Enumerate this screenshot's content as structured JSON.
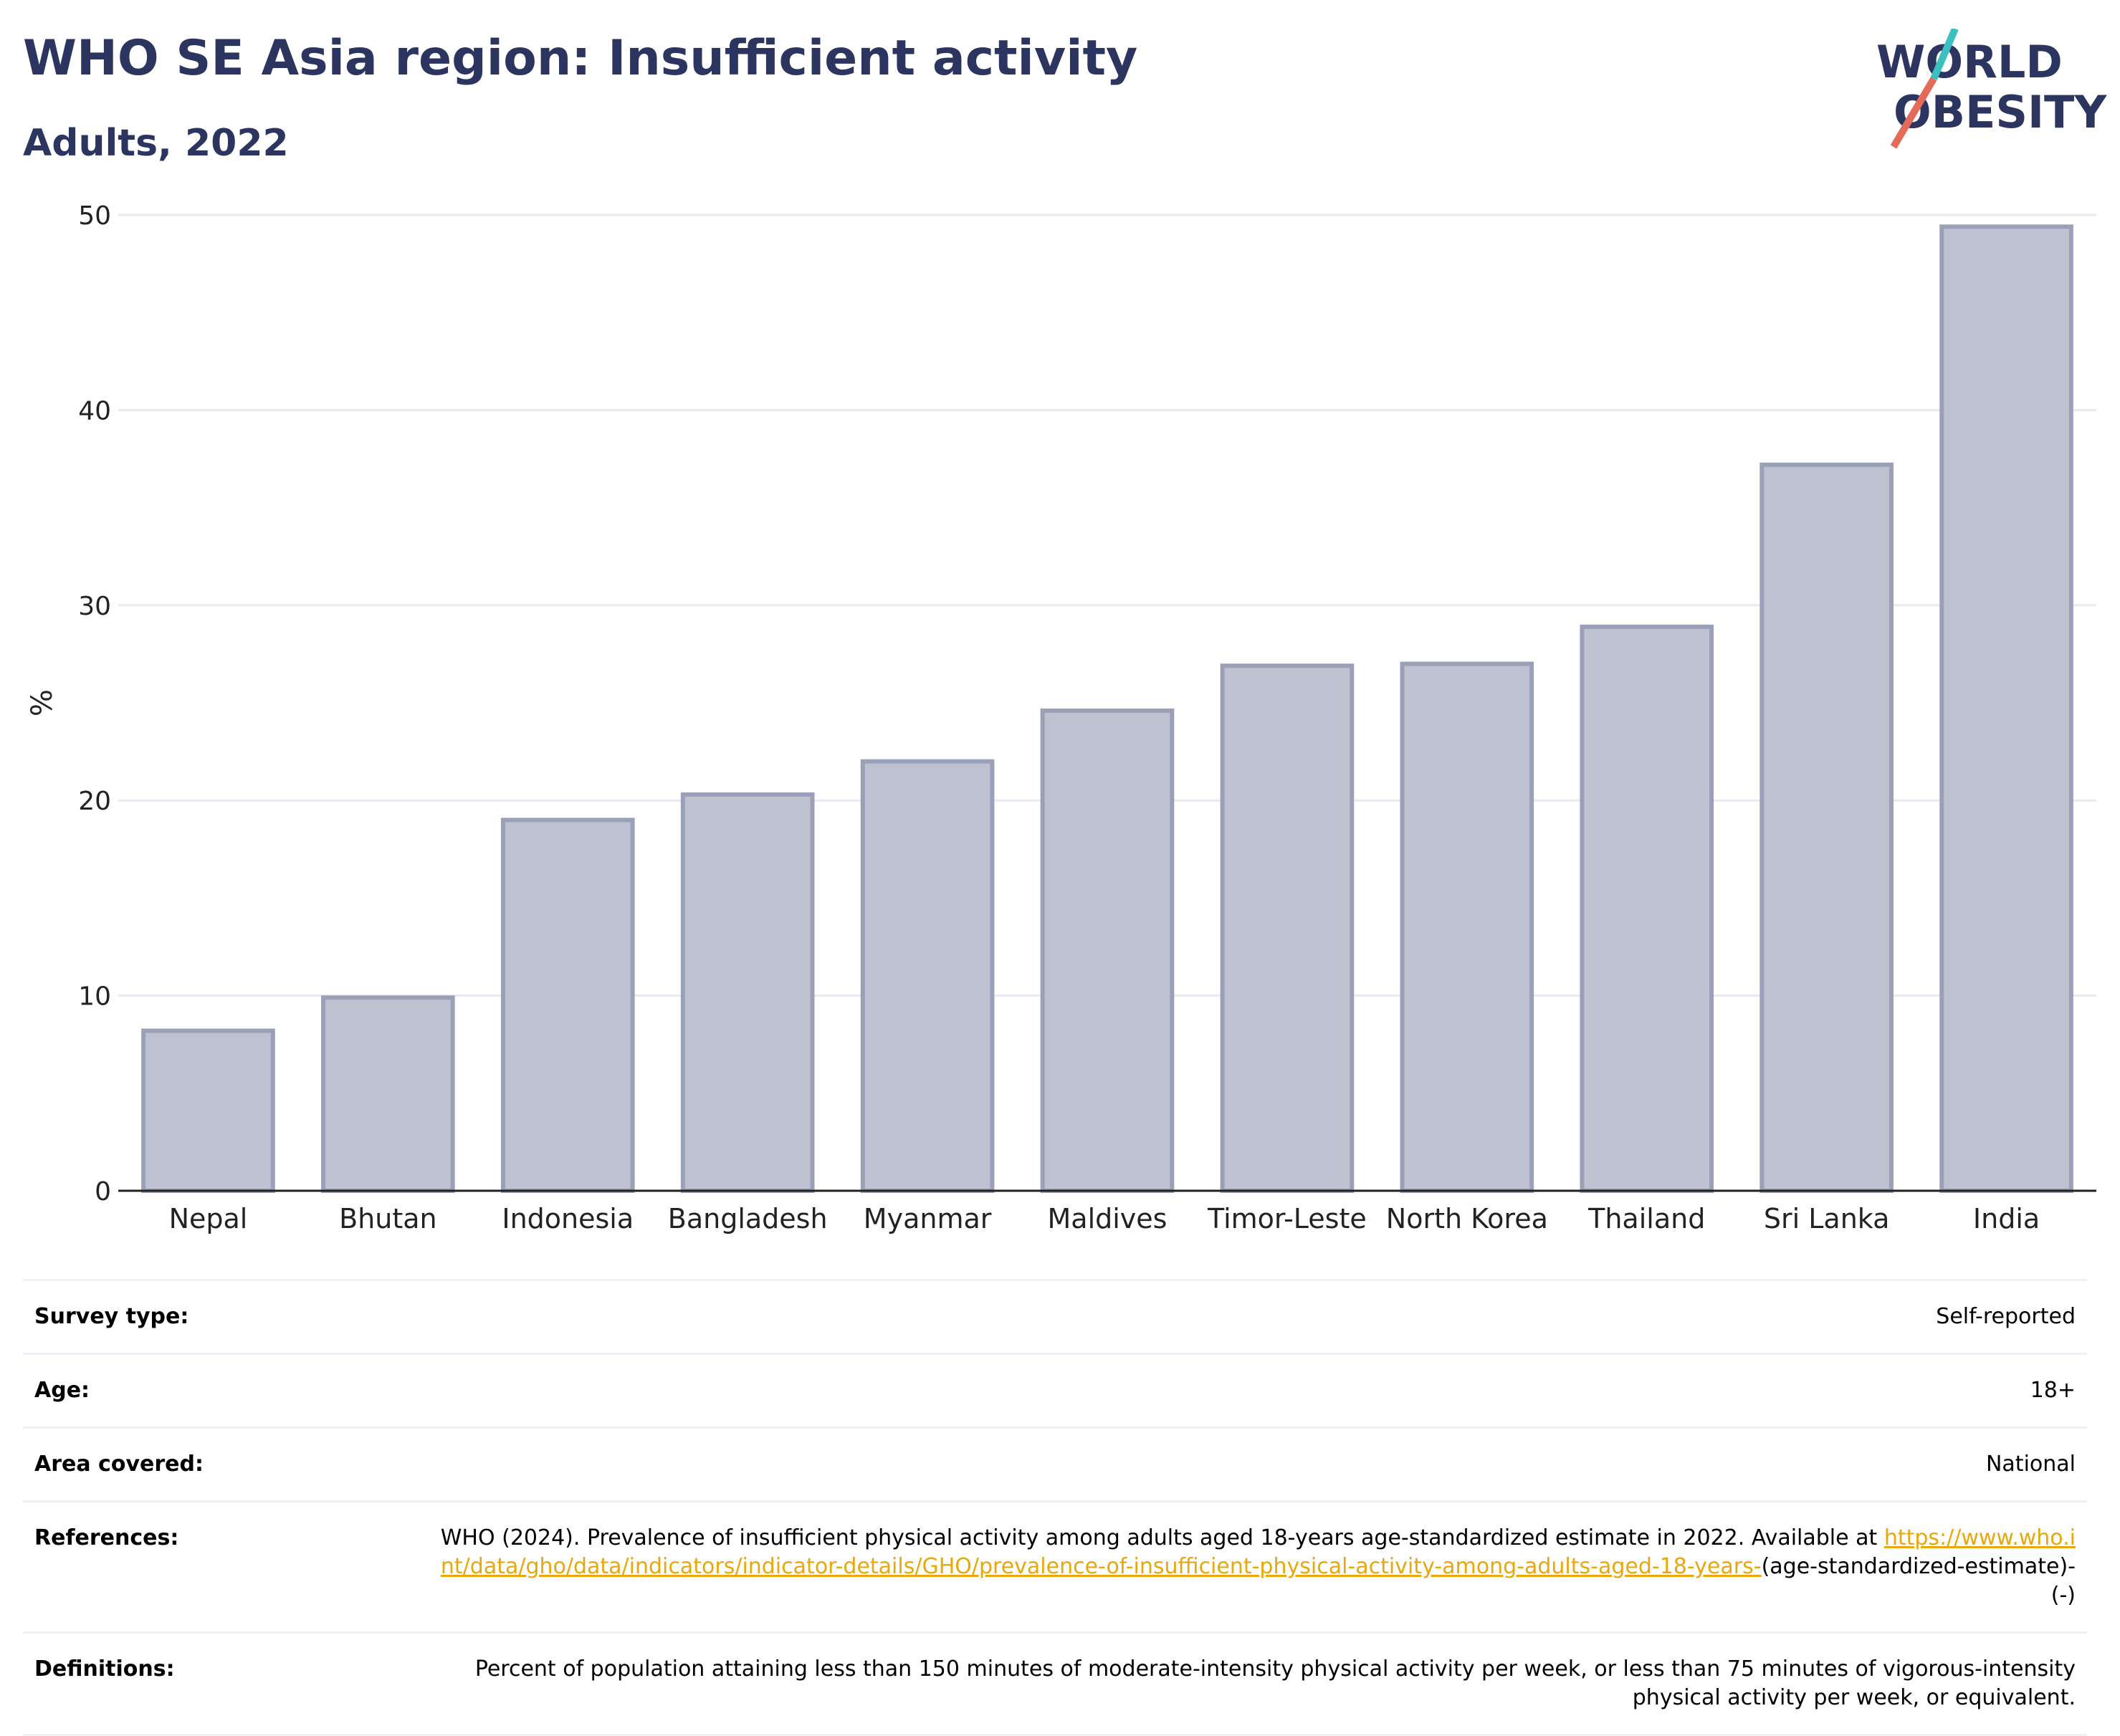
{
  "header": {
    "title": "WHO SE Asia region: Insufficient activity",
    "subtitle": "Adults, 2022",
    "logo_line1": "WORLD",
    "logo_line2": "OBESITY"
  },
  "chart_data": {
    "type": "bar",
    "title": "WHO SE Asia region: Insufficient activity",
    "subtitle": "Adults, 2022",
    "xlabel": "",
    "ylabel": "%",
    "ylim": [
      0,
      50
    ],
    "yticks": [
      0,
      10,
      20,
      30,
      40,
      50
    ],
    "grid": true,
    "categories": [
      "Nepal",
      "Bhutan",
      "Indonesia",
      "Bangladesh",
      "Myanmar",
      "Maldives",
      "Timor-Leste",
      "North Korea",
      "Thailand",
      "Sri Lanka",
      "India"
    ],
    "values": [
      8.2,
      9.9,
      19.0,
      20.3,
      22.0,
      24.6,
      26.9,
      27.0,
      28.9,
      37.2,
      49.4
    ],
    "bar_color": "#bec2d0",
    "bar_stroke": "#9aa0b8"
  },
  "meta": {
    "rows": [
      {
        "key": "Survey type:",
        "value": "Self-reported"
      },
      {
        "key": "Age:",
        "value": "18+"
      },
      {
        "key": "Area covered:",
        "value": "National"
      }
    ],
    "references": {
      "key": "References:",
      "text": "WHO (2024). Prevalence of insufficient physical activity among adults aged 18-years age-standardized estimate in 2022. Available at ",
      "link": "https://www.who.int/data/gho/data/indicators/indicator-details/GHO/prevalence-of-insufficient-physical-activity-among-adults-aged-18-years-",
      "suffix": "(age-standardized-estimate)-(-)"
    },
    "definitions": {
      "key": "Definitions:",
      "value": "Percent of population attaining less than 150 minutes of moderate-intensity physical activity per week, or less than 75 minutes of vigorous-intensity physical activity per week, or equivalent."
    }
  },
  "colors": {
    "title": "#2c3560",
    "accent_teal": "#3bbfbf",
    "accent_coral": "#e46a5a",
    "link": "#e8a80c"
  }
}
